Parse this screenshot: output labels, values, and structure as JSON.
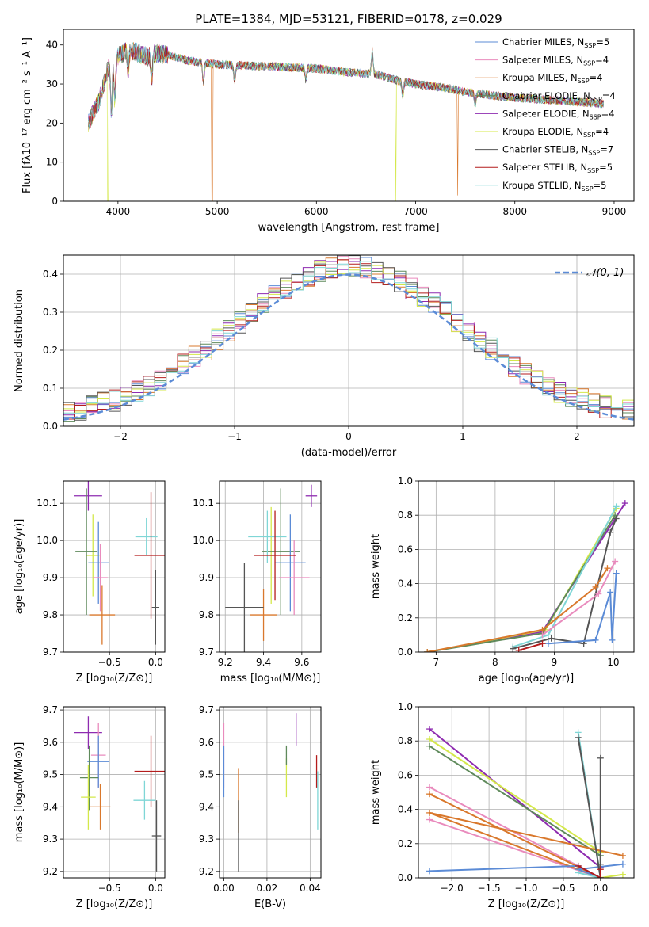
{
  "figure_title": "PLATE=1384, MJD=53121, FIBERID=0178, z=0.029",
  "colors": {
    "Chabrier MILES": "#5b8bd6",
    "Salpeter MILES": "#e98bbd",
    "Kroupa MILES": "#d9782c",
    "Chabrier ELODIE": "#5f8a5b",
    "Salpeter ELODIE": "#8e2bb0",
    "Kroupa ELODIE": "#d4e84a",
    "Chabrier STELIB": "#555555",
    "Salpeter STELIB": "#b41c1c",
    "Kroupa STELIB": "#7fd6d6",
    "normal": "#5b8bd6"
  },
  "chart_data": [
    {
      "id": "spectrum",
      "type": "line",
      "title": "PLATE=1384, MJD=53121, FIBERID=0178, z=0.029",
      "xlabel": "wavelength [Angstrom, rest frame]",
      "ylabel": "Flux [fλ10⁻¹⁷ erg cm⁻² s⁻¹ A⁻¹]",
      "xlim": [
        3450,
        9200
      ],
      "ylim": [
        0,
        44
      ],
      "xticks": [
        4000,
        5000,
        6000,
        7000,
        8000,
        9000
      ],
      "yticks": [
        0,
        10,
        20,
        30,
        40
      ],
      "grid": false,
      "legend_position": "top-right",
      "continuum": [
        [
          3700,
          20
        ],
        [
          3800,
          25
        ],
        [
          3900,
          34
        ],
        [
          4000,
          37
        ],
        [
          4100,
          39
        ],
        [
          4200,
          38
        ],
        [
          4300,
          37
        ],
        [
          4400,
          38
        ],
        [
          4500,
          37.5
        ],
        [
          4700,
          36
        ],
        [
          5000,
          35
        ],
        [
          5500,
          34.5
        ],
        [
          6000,
          34
        ],
        [
          6300,
          33
        ],
        [
          6600,
          32.5
        ],
        [
          6800,
          31
        ],
        [
          7000,
          30
        ],
        [
          7300,
          29
        ],
        [
          7500,
          28
        ],
        [
          7800,
          27
        ],
        [
          8000,
          26.5
        ],
        [
          8300,
          26
        ],
        [
          8600,
          25.5
        ],
        [
          8900,
          25
        ]
      ],
      "series": [
        {
          "name": "Chabrier MILES, N_SSP=5",
          "key": "Chabrier MILES"
        },
        {
          "name": "Salpeter MILES, N_SSP=4",
          "key": "Salpeter MILES"
        },
        {
          "name": "Kroupa MILES, N_SSP=4",
          "key": "Kroupa MILES",
          "dips": [
            [
              4950,
              0
            ],
            [
              7425,
              1.5
            ]
          ]
        },
        {
          "name": "Chabrier ELODIE, N_SSP=4",
          "key": "Chabrier ELODIE"
        },
        {
          "name": "Salpeter ELODIE, N_SSP=4",
          "key": "Salpeter ELODIE"
        },
        {
          "name": "Kroupa ELODIE, N_SSP=4",
          "key": "Kroupa ELODIE",
          "dips": [
            [
              3900,
              0
            ],
            [
              6800,
              0
            ]
          ]
        },
        {
          "name": "Chabrier STELIB, N_SSP=7",
          "key": "Chabrier STELIB"
        },
        {
          "name": "Salpeter STELIB, N_SSP=5",
          "key": "Salpeter STELIB"
        },
        {
          "name": "Kroupa STELIB, N_SSP=5",
          "key": "Kroupa STELIB"
        }
      ]
    },
    {
      "id": "residuals",
      "type": "line",
      "xlabel": "(data-model)/error",
      "ylabel": "Normed distribution",
      "xlim": [
        -2.5,
        2.5
      ],
      "ylim": [
        0,
        0.45
      ],
      "xticks": [
        -2,
        -1,
        0,
        1,
        2
      ],
      "yticks": [
        0.0,
        0.1,
        0.2,
        0.3,
        0.4
      ],
      "grid": true,
      "legend_position": "top-right",
      "legend_label": "𝒩(0, 1)",
      "bin_width": 0.1,
      "envelope": [
        0.03,
        0.035,
        0.04,
        0.045,
        0.05,
        0.055,
        0.06,
        0.065,
        0.07,
        0.08,
        0.09,
        0.1,
        0.11,
        0.12,
        0.14,
        0.16,
        0.18,
        0.2,
        0.22,
        0.24,
        0.26,
        0.27,
        0.29,
        0.31,
        0.33,
        0.34,
        0.35,
        0.36,
        0.37,
        0.38,
        0.39,
        0.39,
        0.4,
        0.4,
        0.39,
        0.39,
        0.38,
        0.37,
        0.36,
        0.35,
        0.34,
        0.33,
        0.31,
        0.3,
        0.29,
        0.27,
        0.25,
        0.23,
        0.21,
        0.2,
        0.18,
        0.17,
        0.15,
        0.14,
        0.13,
        0.12,
        0.11,
        0.1,
        0.09,
        0.08,
        0.07,
        0.065,
        0.06,
        0.055,
        0.05,
        0.045,
        0.04,
        0.035,
        0.03,
        0.03,
        0.03,
        0.03,
        0.03,
        0.03,
        0.03,
        0.03,
        0.03,
        0.03,
        0.03,
        0.03,
        0.03,
        0.03,
        0.03,
        0.03,
        0.03,
        0.03,
        0.03,
        0.03,
        0.03,
        0.03,
        0.03,
        0.03,
        0.03,
        0.03,
        0.03,
        0.03,
        0.03,
        0.03,
        0.03,
        0.03
      ]
    },
    {
      "id": "age_vs_Z",
      "type": "scatter",
      "xlabel": "Z [log₁₀(Z/Z⊙)]",
      "ylabel": "age  [log₁₀(age/yr)]",
      "xlim": [
        -1.0,
        0.1
      ],
      "ylim": [
        9.7,
        10.16
      ],
      "xticks": [
        -0.5,
        0.0
      ],
      "xtick_labels": [
        "−0.5",
        "0.0"
      ],
      "yticks": [
        9.7,
        9.8,
        9.9,
        10.0,
        10.1
      ],
      "grid": true,
      "points": [
        {
          "key": "Salpeter ELODIE",
          "x": -0.73,
          "y": 10.12,
          "dx": 0.15,
          "dy": 0.04
        },
        {
          "key": "Kroupa ELODIE",
          "x": -0.68,
          "y": 9.96,
          "dx": 0.07,
          "dy": 0.11
        },
        {
          "key": "Chabrier ELODIE",
          "x": -0.75,
          "y": 9.97,
          "dx": 0.12,
          "dy": 0.17
        },
        {
          "key": "Chabrier MILES",
          "x": -0.62,
          "y": 9.94,
          "dx": 0.11,
          "dy": 0.11
        },
        {
          "key": "Salpeter MILES",
          "x": -0.6,
          "y": 9.9,
          "dx": 0.08,
          "dy": 0.09
        },
        {
          "key": "Kroupa MILES",
          "x": -0.58,
          "y": 9.8,
          "dx": 0.14,
          "dy": 0.08
        },
        {
          "key": "Kroupa STELIB",
          "x": -0.1,
          "y": 10.01,
          "dx": 0.12,
          "dy": 0.05
        },
        {
          "key": "Salpeter STELIB",
          "x": -0.05,
          "y": 9.96,
          "dx": 0.18,
          "dy": 0.17
        },
        {
          "key": "Chabrier STELIB",
          "x": 0.0,
          "y": 9.82,
          "dx": 0.04,
          "dy": 0.1
        }
      ]
    },
    {
      "id": "age_vs_mass",
      "type": "scatter",
      "xlabel": "mass [log₁₀(M/M⊙)]",
      "xlim": [
        9.17,
        9.7
      ],
      "ylim": [
        9.7,
        10.16
      ],
      "xticks": [
        9.2,
        9.4,
        9.6
      ],
      "yticks": [
        9.7,
        9.8,
        9.9,
        10.0,
        10.1
      ],
      "grid": true,
      "points": [
        {
          "key": "Salpeter ELODIE",
          "x": 9.65,
          "y": 10.12,
          "dx": 0.03,
          "dy": 0.03
        },
        {
          "key": "Kroupa ELODIE",
          "x": 9.44,
          "y": 9.96,
          "dx": 0.03,
          "dy": 0.13
        },
        {
          "key": "Chabrier ELODIE",
          "x": 9.49,
          "y": 9.97,
          "dx": 0.1,
          "dy": 0.17
        },
        {
          "key": "Chabrier MILES",
          "x": 9.54,
          "y": 9.94,
          "dx": 0.08,
          "dy": 0.13
        },
        {
          "key": "Salpeter MILES",
          "x": 9.56,
          "y": 9.9,
          "dx": 0.08,
          "dy": 0.1
        },
        {
          "key": "Kroupa MILES",
          "x": 9.4,
          "y": 9.8,
          "dx": 0.07,
          "dy": 0.07
        },
        {
          "key": "Kroupa STELIB",
          "x": 9.42,
          "y": 10.01,
          "dx": 0.1,
          "dy": 0.07
        },
        {
          "key": "Salpeter STELIB",
          "x": 9.46,
          "y": 9.96,
          "dx": 0.11,
          "dy": 0.12
        },
        {
          "key": "Chabrier STELIB",
          "x": 9.3,
          "y": 9.82,
          "dx": 0.1,
          "dy": 0.12
        }
      ]
    },
    {
      "id": "weight_vs_age",
      "type": "line",
      "xlabel": "age  [log₁₀(age/yr)]",
      "ylabel": "mass weight",
      "xlim": [
        6.7,
        10.35
      ],
      "ylim": [
        0,
        1.0
      ],
      "xticks": [
        7,
        8,
        9,
        10
      ],
      "yticks": [
        0.0,
        0.2,
        0.4,
        0.6,
        0.8,
        1.0
      ],
      "grid": true,
      "series": [
        {
          "key": "Salpeter ELODIE",
          "points": [
            [
              6.85,
              0.0
            ],
            [
              8.8,
              0.12
            ],
            [
              10.2,
              0.87
            ]
          ]
        },
        {
          "key": "Kroupa ELODIE",
          "points": [
            [
              6.85,
              0.0
            ],
            [
              8.85,
              0.13
            ],
            [
              10.05,
              0.84
            ]
          ]
        },
        {
          "key": "Chabrier ELODIE",
          "points": [
            [
              6.85,
              0.0
            ],
            [
              8.8,
              0.11
            ],
            [
              10.03,
              0.8
            ]
          ]
        },
        {
          "key": "Kroupa STELIB",
          "points": [
            [
              8.3,
              0.03
            ],
            [
              8.9,
              0.1
            ],
            [
              10.05,
              0.85
            ]
          ]
        },
        {
          "key": "Chabrier STELIB",
          "points": [
            [
              8.3,
              0.02
            ],
            [
              8.95,
              0.08
            ],
            [
              9.5,
              0.05
            ],
            [
              9.95,
              0.7
            ],
            [
              10.05,
              0.78
            ]
          ]
        },
        {
          "key": "Kroupa MILES",
          "points": [
            [
              6.85,
              0.0
            ],
            [
              8.8,
              0.13
            ],
            [
              9.7,
              0.38
            ],
            [
              9.9,
              0.49
            ]
          ]
        },
        {
          "key": "Salpeter MILES",
          "points": [
            [
              8.8,
              0.1
            ],
            [
              9.75,
              0.34
            ],
            [
              10.03,
              0.53
            ]
          ]
        },
        {
          "key": "Chabrier MILES",
          "points": [
            [
              8.9,
              0.05
            ],
            [
              9.7,
              0.07
            ],
            [
              9.95,
              0.35
            ],
            [
              9.98,
              0.07
            ],
            [
              10.05,
              0.46
            ]
          ]
        },
        {
          "key": "Salpeter STELIB",
          "points": [
            [
              8.4,
              0.01
            ],
            [
              8.8,
              0.05
            ]
          ]
        }
      ]
    },
    {
      "id": "mass_vs_Z",
      "type": "scatter",
      "xlabel": "Z [log₁₀(Z/Z⊙)]",
      "ylabel": "mass [log₁₀(M/M⊙)]",
      "xlim": [
        -1.0,
        0.1
      ],
      "ylim": [
        9.18,
        9.71
      ],
      "xticks": [
        -0.5,
        0.0
      ],
      "xtick_labels": [
        "−0.5",
        "0.0"
      ],
      "yticks": [
        9.2,
        9.3,
        9.4,
        9.5,
        9.6,
        9.7
      ],
      "grid": true,
      "points": [
        {
          "key": "Salpeter ELODIE",
          "x": -0.73,
          "y": 9.63,
          "dx": 0.15,
          "dy": 0.05
        },
        {
          "key": "Salpeter MILES",
          "x": -0.62,
          "y": 9.56,
          "dx": 0.08,
          "dy": 0.1
        },
        {
          "key": "Chabrier MILES",
          "x": -0.62,
          "y": 9.54,
          "dx": 0.12,
          "dy": 0.08
        },
        {
          "key": "Chabrier ELODIE",
          "x": -0.72,
          "y": 9.49,
          "dx": 0.1,
          "dy": 0.1
        },
        {
          "key": "Kroupa ELODIE",
          "x": -0.73,
          "y": 9.43,
          "dx": 0.08,
          "dy": 0.1
        },
        {
          "key": "Kroupa MILES",
          "x": -0.6,
          "y": 9.4,
          "dx": 0.11,
          "dy": 0.07
        },
        {
          "key": "Salpeter STELIB",
          "x": -0.05,
          "y": 9.51,
          "dx": 0.18,
          "dy": 0.11
        },
        {
          "key": "Kroupa STELIB",
          "x": -0.12,
          "y": 9.42,
          "dx": 0.12,
          "dy": 0.06
        },
        {
          "key": "Chabrier STELIB",
          "x": 0.01,
          "y": 9.31,
          "dx": 0.05,
          "dy": 0.11
        }
      ]
    },
    {
      "id": "mass_vs_ebv",
      "type": "scatter",
      "xlabel": "E(B-V)",
      "xlim": [
        -0.002,
        0.045
      ],
      "ylim": [
        9.18,
        9.71
      ],
      "xticks": [
        0.0,
        0.02,
        0.04
      ],
      "xtick_labels": [
        "0.00",
        "0.02",
        "0.04"
      ],
      "yticks": [
        9.2,
        9.3,
        9.4,
        9.5,
        9.6,
        9.7
      ],
      "grid": true,
      "points": [
        {
          "key": "Salpeter MILES",
          "x": 0.0,
          "y": 9.56,
          "dx": 0.0,
          "dy": 0.1
        },
        {
          "key": "Chabrier MILES",
          "x": 0.0,
          "y": 9.51,
          "dx": 0.0,
          "dy": 0.08
        },
        {
          "key": "Kroupa MILES",
          "x": 0.0068,
          "y": 9.42,
          "dx": 0.0,
          "dy": 0.1
        },
        {
          "key": "Chabrier STELIB",
          "x": 0.0068,
          "y": 9.31,
          "dx": 0.0,
          "dy": 0.11
        },
        {
          "key": "Kroupa ELODIE",
          "x": 0.029,
          "y": 9.49,
          "dx": 0.0,
          "dy": 0.06
        },
        {
          "key": "Chabrier ELODIE",
          "x": 0.029,
          "y": 9.56,
          "dx": 0.0,
          "dy": 0.03
        },
        {
          "key": "Salpeter ELODIE",
          "x": 0.0335,
          "y": 9.64,
          "dx": 0.0,
          "dy": 0.05
        },
        {
          "key": "Salpeter STELIB",
          "x": 0.043,
          "y": 9.51,
          "dx": 0.0,
          "dy": 0.05
        },
        {
          "key": "Kroupa STELIB",
          "x": 0.0435,
          "y": 9.42,
          "dx": 0.0,
          "dy": 0.09
        }
      ]
    },
    {
      "id": "weight_vs_Z",
      "type": "line",
      "xlabel": "Z [log₁₀(Z/Z⊙)]",
      "ylabel": "mass weight",
      "xlim": [
        -2.45,
        0.45
      ],
      "ylim": [
        0,
        1.0
      ],
      "xticks": [
        -2.0,
        -1.5,
        -1.0,
        -0.5,
        0.0
      ],
      "xtick_labels": [
        "−2.0",
        "−1.5",
        "−1.0",
        "−0.5",
        "0.0"
      ],
      "yticks": [
        0.0,
        0.2,
        0.4,
        0.6,
        0.8,
        1.0
      ],
      "grid": true,
      "series": [
        {
          "key": "Salpeter ELODIE",
          "points": [
            [
              -2.3,
              0.87
            ],
            [
              0.0,
              0.06
            ],
            [
              0.0,
              0.0
            ]
          ]
        },
        {
          "key": "Kroupa ELODIE",
          "points": [
            [
              -2.3,
              0.81
            ],
            [
              0.0,
              0.15
            ],
            [
              0.0,
              0.0
            ],
            [
              0.3,
              0.02
            ]
          ]
        },
        {
          "key": "Chabrier ELODIE",
          "points": [
            [
              -2.3,
              0.77
            ],
            [
              0.0,
              0.13
            ],
            [
              0.0,
              0.0
            ]
          ]
        },
        {
          "key": "Salpeter MILES",
          "points": [
            [
              -2.3,
              0.53
            ],
            [
              0.0,
              0.0
            ],
            [
              -2.3,
              0.34
            ]
          ]
        },
        {
          "key": "Kroupa MILES",
          "points": [
            [
              -2.3,
              0.49
            ],
            [
              0.0,
              0.0
            ],
            [
              -2.3,
              0.38
            ],
            [
              0.3,
              0.13
            ]
          ]
        },
        {
          "key": "Chabrier MILES",
          "points": [
            [
              -2.3,
              0.04
            ],
            [
              -0.3,
              0.07
            ],
            [
              0.0,
              0.0
            ],
            [
              -0.3,
              0.05
            ],
            [
              0.3,
              0.08
            ]
          ]
        },
        {
          "key": "Kroupa STELIB",
          "points": [
            [
              -0.3,
              0.85
            ],
            [
              0.0,
              0.0
            ],
            [
              -0.3,
              0.03
            ]
          ]
        },
        {
          "key": "Chabrier STELIB",
          "points": [
            [
              -0.3,
              0.82
            ],
            [
              0.0,
              0.0
            ],
            [
              0.0,
              0.7
            ],
            [
              0.0,
              0.08
            ]
          ]
        },
        {
          "key": "Salpeter STELIB",
          "points": [
            [
              -0.3,
              0.07
            ],
            [
              0.0,
              0.0
            ],
            [
              0.0,
              0.05
            ]
          ]
        }
      ]
    }
  ]
}
